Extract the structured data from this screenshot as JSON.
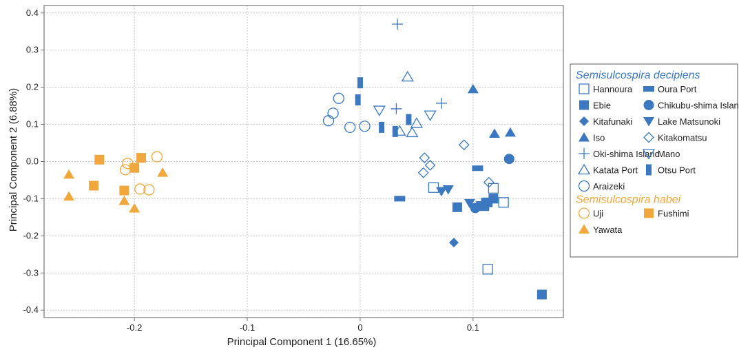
{
  "chart_data": {
    "type": "scatter",
    "title": "",
    "xlabel": "Principal Component 1 (16.65%)",
    "ylabel": "Principal Component 2 (6.88%)",
    "xlim": [
      -0.28,
      0.18
    ],
    "ylim": [
      -0.42,
      0.42
    ],
    "x_ticks": [
      -0.2,
      -0.1,
      0,
      0.1
    ],
    "x_tick_labels": [
      "-0.2",
      "-0.1",
      "0",
      "0.1"
    ],
    "y_ticks": [
      -0.4,
      -0.3,
      -0.2,
      -0.1,
      0.0,
      0.1,
      0.2,
      0.3,
      0.4
    ],
    "y_tick_labels": [
      "-0.4",
      "-0.3",
      "-0.2",
      "-0.1",
      "0.0",
      "0.1",
      "0.2",
      "0.3",
      "0.4"
    ],
    "grid": true,
    "legend_position": "right",
    "colors": {
      "decipiens": "#3c78c0",
      "habei": "#f0a73c"
    },
    "legend_groups": [
      {
        "title": "Semisulcospira decipiens",
        "color": "#3c78c0",
        "rows": [
          [
            "Hannoura",
            "Oura Port"
          ],
          [
            "Ebie",
            "Chikubu-shima Island"
          ],
          [
            "Kitafunaki",
            "Lake Matsunoki"
          ],
          [
            "Iso",
            "Kitakomatsu"
          ],
          [
            "Oki-shima Island",
            "Mano"
          ],
          [
            "Katata Port",
            "Otsu Port"
          ],
          [
            "Araizeki"
          ]
        ]
      },
      {
        "title": "Semisulcospira habei",
        "color": "#f0a73c",
        "rows": [
          [
            "Uji",
            "Fushimi"
          ],
          [
            "Yawata"
          ]
        ]
      }
    ],
    "series": [
      {
        "name": "Hannoura",
        "marker": "square-open",
        "color": "#3c78c0",
        "points": [
          [
            0.065,
            -0.07
          ],
          [
            0.118,
            -0.072
          ],
          [
            0.127,
            -0.11
          ],
          [
            0.113,
            -0.29
          ]
        ]
      },
      {
        "name": "Oura Port",
        "marker": "rect-h",
        "color": "#3c78c0",
        "points": [
          [
            0.035,
            -0.1
          ],
          [
            0.104,
            -0.018
          ],
          [
            0.112,
            -0.105
          ]
        ]
      },
      {
        "name": "Ebie",
        "marker": "square",
        "color": "#3c78c0",
        "points": [
          [
            0.086,
            -0.123
          ],
          [
            0.113,
            -0.11
          ],
          [
            0.118,
            -0.1
          ],
          [
            0.11,
            -0.12
          ],
          [
            0.161,
            -0.358
          ]
        ]
      },
      {
        "name": "Chikubu-shima Island",
        "marker": "circle",
        "color": "#3c78c0",
        "points": [
          [
            0.132,
            0.007
          ],
          [
            0.102,
            -0.125
          ]
        ]
      },
      {
        "name": "Kitafunaki",
        "marker": "diamond",
        "color": "#3c78c0",
        "points": [
          [
            0.083,
            -0.218
          ]
        ]
      },
      {
        "name": "Lake Matsunoki",
        "marker": "triangle-down",
        "color": "#3c78c0",
        "points": [
          [
            0.072,
            -0.08
          ],
          [
            0.078,
            -0.075
          ],
          [
            0.097,
            -0.112
          ],
          [
            0.107,
            -0.118
          ]
        ]
      },
      {
        "name": "Iso",
        "marker": "triangle",
        "color": "#3c78c0",
        "points": [
          [
            0.1,
            0.195
          ],
          [
            0.119,
            0.075
          ],
          [
            0.133,
            0.078
          ]
        ]
      },
      {
        "name": "Kitakomatsu",
        "marker": "diamond-open",
        "color": "#3c78c0",
        "points": [
          [
            0.057,
            0.01
          ],
          [
            0.062,
            -0.01
          ],
          [
            0.056,
            -0.03
          ],
          [
            0.092,
            0.045
          ],
          [
            0.114,
            -0.056
          ]
        ]
      },
      {
        "name": "Oki-shima Island",
        "marker": "plus",
        "color": "#3c78c0",
        "points": [
          [
            0.033,
            0.37
          ],
          [
            0.032,
            0.142
          ],
          [
            0.072,
            0.157
          ]
        ]
      },
      {
        "name": "Mano",
        "marker": "triangle-down-open",
        "color": "#3c78c0",
        "points": [
          [
            0.017,
            0.138
          ],
          [
            0.062,
            0.125
          ]
        ]
      },
      {
        "name": "Katata Port",
        "marker": "triangle-open",
        "color": "#3c78c0",
        "points": [
          [
            0.042,
            0.228
          ],
          [
            0.05,
            0.103
          ],
          [
            0.035,
            0.082
          ],
          [
            0.046,
            0.078
          ]
        ]
      },
      {
        "name": "Otsu Port",
        "marker": "rect-v",
        "color": "#3c78c0",
        "points": [
          [
            0.0,
            0.212
          ],
          [
            -0.002,
            0.166
          ],
          [
            0.019,
            0.092
          ],
          [
            0.031,
            0.081
          ],
          [
            0.043,
            0.113
          ]
        ]
      },
      {
        "name": "Araizeki",
        "marker": "circle-open",
        "color": "#3c78c0",
        "points": [
          [
            -0.019,
            0.17
          ],
          [
            -0.024,
            0.13
          ],
          [
            -0.028,
            0.11
          ],
          [
            -0.009,
            0.092
          ],
          [
            0.004,
            0.095
          ]
        ]
      },
      {
        "name": "Uji",
        "marker": "circle-open",
        "color": "#f0a73c",
        "points": [
          [
            -0.18,
            0.013
          ],
          [
            -0.206,
            -0.005
          ],
          [
            -0.208,
            -0.022
          ],
          [
            -0.195,
            -0.074
          ],
          [
            -0.187,
            -0.076
          ]
        ]
      },
      {
        "name": "Fushimi",
        "marker": "square",
        "color": "#f0a73c",
        "points": [
          [
            -0.231,
            0.005
          ],
          [
            -0.194,
            0.01
          ],
          [
            -0.2,
            -0.017
          ],
          [
            -0.236,
            -0.065
          ],
          [
            -0.209,
            -0.078
          ]
        ]
      },
      {
        "name": "Yawata",
        "marker": "triangle",
        "color": "#f0a73c",
        "points": [
          [
            -0.258,
            -0.035
          ],
          [
            -0.175,
            -0.03
          ],
          [
            -0.258,
            -0.094
          ],
          [
            -0.209,
            -0.106
          ],
          [
            -0.2,
            -0.126
          ]
        ]
      }
    ]
  }
}
